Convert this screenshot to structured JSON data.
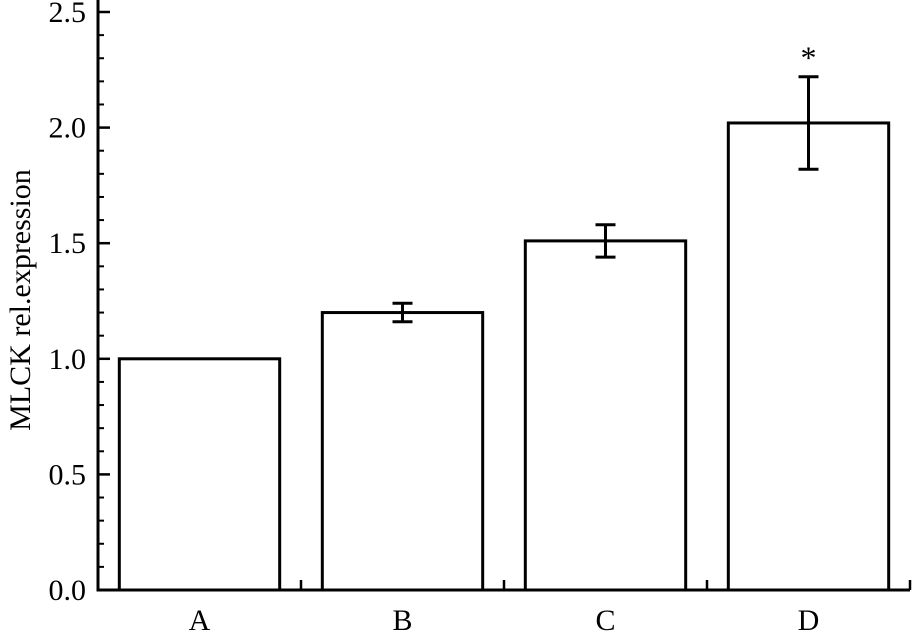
{
  "chart_data": {
    "type": "bar",
    "title": "",
    "xlabel": "",
    "ylabel": "MLCK rel.expression",
    "categories": [
      "A",
      "B",
      "C",
      "D"
    ],
    "values": [
      1.0,
      1.2,
      1.51,
      2.02
    ],
    "errors": [
      0.0,
      0.04,
      0.07,
      0.2
    ],
    "annotations": [
      "",
      "",
      "",
      "*"
    ],
    "ylim": [
      0,
      2.5
    ],
    "yticks": [
      0.0,
      0.5,
      1.0,
      1.5,
      2.0,
      2.5
    ],
    "ytick_labels": [
      "0.0",
      "0.5",
      "1.0",
      "1.5",
      "2.0",
      "2.5"
    ],
    "minor_ytick_step": 0.1,
    "grid": false,
    "legend": "none",
    "bar_fill": "#ffffff",
    "bar_edge": "#000000"
  }
}
